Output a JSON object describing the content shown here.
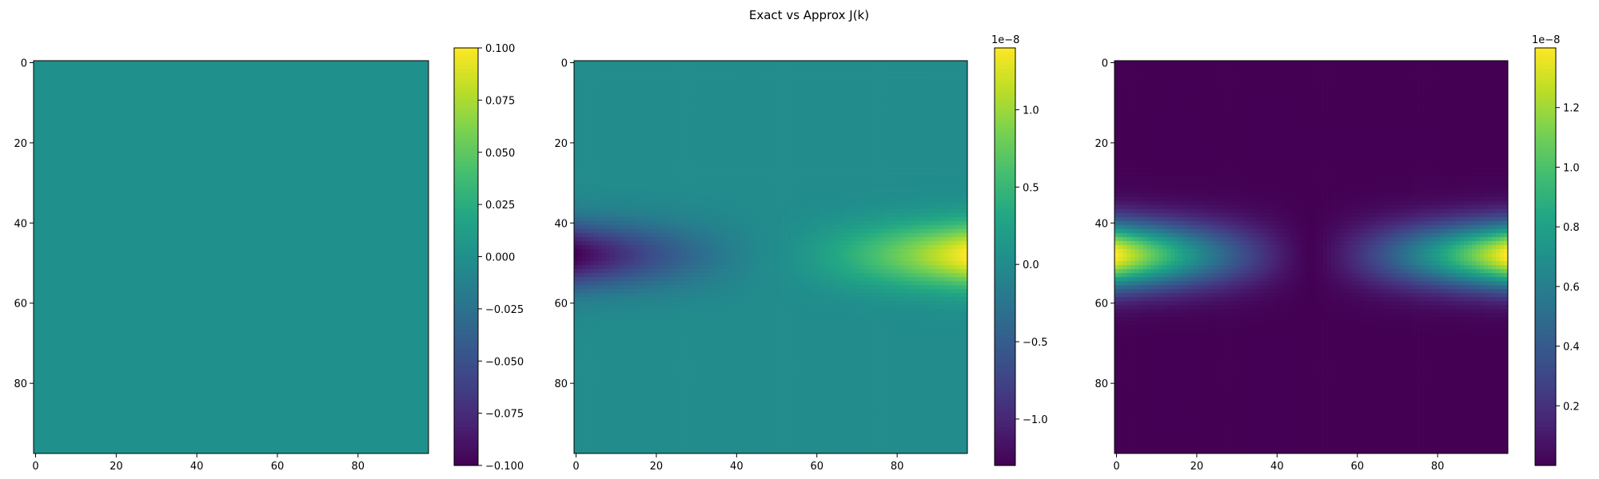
{
  "figure": {
    "suptitle": "Exact vs Approx J(k)"
  },
  "chart_data": [
    {
      "type": "heatmap",
      "title": "",
      "grid_shape": [
        98,
        98
      ],
      "xlim": [
        -0.5,
        97.5
      ],
      "ylim": [
        97.5,
        -0.5
      ],
      "xticks": [
        0,
        20,
        40,
        60,
        80
      ],
      "yticks": [
        0,
        20,
        40,
        60,
        80
      ],
      "xtick_labels": [
        "0",
        "20",
        "40",
        "60",
        "80"
      ],
      "ytick_labels": [
        "0",
        "20",
        "40",
        "60",
        "80"
      ],
      "colormap": "viridis",
      "field": "zero",
      "uniform_value": 0.0,
      "colorbar": {
        "vmin": -0.1,
        "vmax": 0.1,
        "ticks": [
          -0.1,
          -0.075,
          -0.05,
          -0.025,
          0.0,
          0.025,
          0.05,
          0.075,
          0.1
        ],
        "tick_labels": [
          "−0.100",
          "−0.075",
          "−0.050",
          "−0.025",
          "0.000",
          "0.025",
          "0.050",
          "0.075",
          "0.100"
        ],
        "offset_label": ""
      }
    },
    {
      "type": "heatmap",
      "title": "",
      "grid_shape": [
        98,
        98
      ],
      "xlim": [
        -0.5,
        97.5
      ],
      "ylim": [
        97.5,
        -0.5
      ],
      "xticks": [
        0,
        20,
        40,
        60,
        80
      ],
      "yticks": [
        0,
        20,
        40,
        60,
        80
      ],
      "xtick_labels": [
        "0",
        "20",
        "40",
        "60",
        "80"
      ],
      "ytick_labels": [
        "0",
        "20",
        "40",
        "60",
        "80"
      ],
      "colormap": "viridis",
      "field": "signed_difference",
      "peak_row": 48,
      "row_sigma": 8,
      "min_value": -1.3e-08,
      "max_value": 1.4e-08,
      "colorbar": {
        "vmin": -1.3e-08,
        "vmax": 1.4e-08,
        "ticks": [
          -1e-08,
          -5e-09,
          0.0,
          5e-09,
          1e-08
        ],
        "tick_labels": [
          "−1.0",
          "−0.5",
          "0.0",
          "0.5",
          "1.0"
        ],
        "offset_label": "1e−8"
      }
    },
    {
      "type": "heatmap",
      "title": "",
      "grid_shape": [
        98,
        98
      ],
      "xlim": [
        -0.5,
        97.5
      ],
      "ylim": [
        97.5,
        -0.5
      ],
      "xticks": [
        0,
        20,
        40,
        60,
        80
      ],
      "yticks": [
        0,
        20,
        40,
        60,
        80
      ],
      "xtick_labels": [
        "0",
        "20",
        "40",
        "60",
        "80"
      ],
      "ytick_labels": [
        "0",
        "20",
        "40",
        "60",
        "80"
      ],
      "colormap": "viridis",
      "field": "absolute_difference",
      "peak_row": 48,
      "row_sigma": 8,
      "min_value": 0.0,
      "max_value": 1.4e-08,
      "colorbar": {
        "vmin": 0.0,
        "vmax": 1.4e-08,
        "ticks": [
          2e-09,
          4e-09,
          6e-09,
          8e-09,
          1e-08,
          1.2e-08
        ],
        "tick_labels": [
          "0.2",
          "0.4",
          "0.6",
          "0.8",
          "1.0",
          "1.2"
        ],
        "offset_label": "1e−8"
      }
    }
  ]
}
